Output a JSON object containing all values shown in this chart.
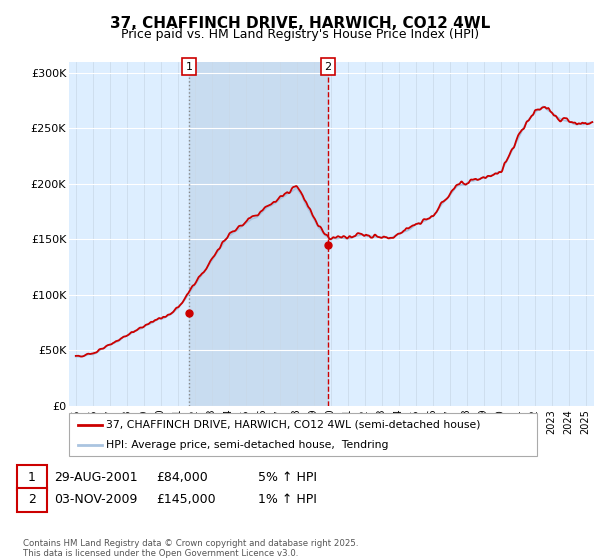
{
  "title": "37, CHAFFINCH DRIVE, HARWICH, CO12 4WL",
  "subtitle": "Price paid vs. HM Land Registry's House Price Index (HPI)",
  "ylabel_ticks": [
    "£0",
    "£50K",
    "£100K",
    "£150K",
    "£200K",
    "£250K",
    "£300K"
  ],
  "ytick_values": [
    0,
    50000,
    100000,
    150000,
    200000,
    250000,
    300000
  ],
  "ylim": [
    0,
    310000
  ],
  "xlim_start": 1994.6,
  "xlim_end": 2025.5,
  "hpi_color": "#aac4e0",
  "price_color": "#cc0000",
  "bg_plot": "#ddeeff",
  "shade_color": "#c8dcf0",
  "marker1_year": 2001.66,
  "marker2_year": 2009.84,
  "purchase1_date": "29-AUG-2001",
  "purchase1_price": "£84,000",
  "purchase1_pct": "5% ↑ HPI",
  "purchase2_date": "03-NOV-2009",
  "purchase2_price": "£145,000",
  "purchase2_pct": "1% ↑ HPI",
  "legend_line1": "37, CHAFFINCH DRIVE, HARWICH, CO12 4WL (semi-detached house)",
  "legend_line2": "HPI: Average price, semi-detached house,  Tendring",
  "footer": "Contains HM Land Registry data © Crown copyright and database right 2025.\nThis data is licensed under the Open Government Licence v3.0.",
  "title_fontsize": 11,
  "subtitle_fontsize": 9
}
